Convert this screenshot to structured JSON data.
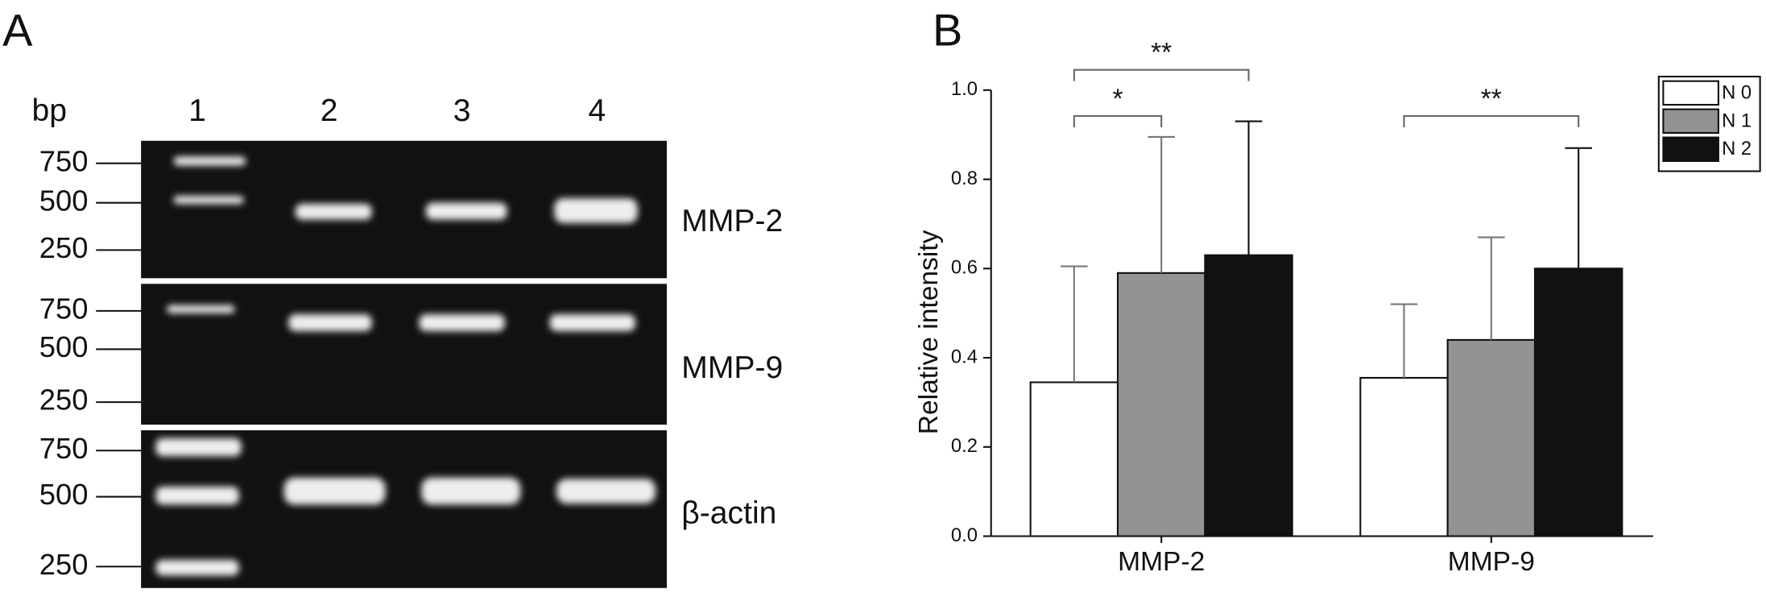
{
  "panel_a": {
    "label": "A",
    "bp_label": "bp",
    "lanes": [
      "1",
      "2",
      "3",
      "4"
    ],
    "markers": [
      [
        750,
        500,
        250
      ],
      [
        750,
        500,
        250
      ],
      [
        750,
        500,
        250
      ]
    ],
    "genes": [
      "MMP-2",
      "MMP-9",
      "β-actin"
    ]
  },
  "chart_data": {
    "type": "bar",
    "panel_label": "B",
    "y_label": "Relative intensity",
    "categories": [
      "MMP-2",
      "MMP-9"
    ],
    "series": [
      {
        "name": "N 0",
        "color": "#ffffff",
        "values": [
          0.345,
          0.355
        ],
        "errors": [
          0.26,
          0.165
        ]
      },
      {
        "name": "N 1",
        "color": "#939393",
        "values": [
          0.59,
          0.44
        ],
        "errors": [
          0.305,
          0.23
        ]
      },
      {
        "name": "N 2",
        "color": "#111111",
        "values": [
          0.63,
          0.6
        ],
        "errors": [
          0.3,
          0.27
        ]
      }
    ],
    "ylim": [
      0,
      1.0
    ],
    "yticks": [
      {
        "value": 0,
        "label": "0.0"
      },
      {
        "value": 0.2,
        "label": "0.2"
      },
      {
        "value": 0.4,
        "label": "0.4"
      },
      {
        "value": 0.6,
        "label": "0.6"
      },
      {
        "value": 0.8,
        "label": "0.8"
      },
      {
        "value": 1.0,
        "label": "1.0"
      }
    ],
    "annotations": [
      "*",
      "**",
      "**"
    ],
    "legend": "upper right"
  }
}
